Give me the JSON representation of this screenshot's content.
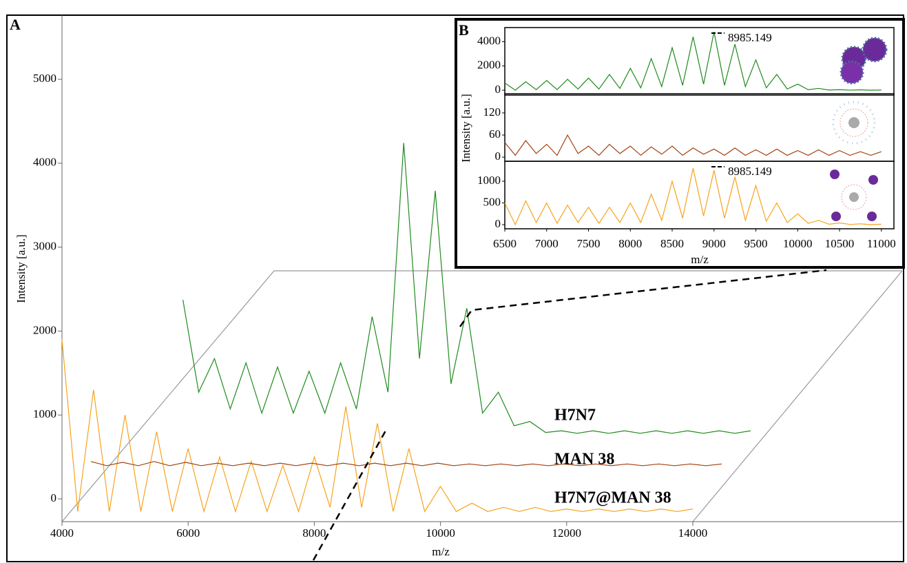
{
  "chart_data": [
    {
      "type": "line",
      "panel_label": "A",
      "xlabel": "m/z",
      "ylabel": "Intensity [a.u.]",
      "xlim": [
        4000,
        14000
      ],
      "ylim": [
        -271,
        5764
      ],
      "xticks": [
        4000,
        6000,
        8000,
        10000,
        12000,
        14000
      ],
      "yticks": [
        0,
        1000,
        2000,
        3000,
        4000,
        5000
      ],
      "x": [
        4000,
        4250,
        4500,
        4750,
        5000,
        5250,
        5500,
        5750,
        6000,
        6250,
        6500,
        6750,
        7000,
        7250,
        7500,
        7750,
        8000,
        8250,
        8500,
        8750,
        9000,
        9250,
        9500,
        9750,
        10000,
        10250,
        10500,
        10750,
        11000,
        11250,
        11500,
        11750,
        12000,
        12250,
        12500,
        12750,
        13000,
        13250,
        13500,
        13750,
        14000
      ],
      "series": [
        {
          "name": "H7N7@MAN 38",
          "color": "#f7a21b",
          "values": [
            1900,
            -150,
            1300,
            -150,
            1000,
            -150,
            800,
            -150,
            600,
            -150,
            500,
            -150,
            450,
            -150,
            400,
            -150,
            500,
            -100,
            1100,
            -100,
            900,
            -150,
            600,
            -150,
            150,
            -150,
            -50,
            -150,
            -100,
            -150,
            -100,
            -150,
            -120,
            -150,
            -120,
            -150,
            -120,
            -150,
            -120,
            -150,
            -120
          ]
        },
        {
          "name": "MAN 38",
          "color": "#a0410d",
          "values": [
            60,
            10,
            50,
            10,
            60,
            10,
            50,
            10,
            40,
            10,
            40,
            10,
            40,
            10,
            40,
            10,
            40,
            10,
            40,
            10,
            40,
            10,
            40,
            10,
            30,
            10,
            30,
            10,
            30,
            10,
            30,
            10,
            30,
            10,
            30,
            10,
            30,
            10,
            30,
            10,
            30
          ]
        },
        {
          "name": "H7N7",
          "color": "#1e8a1e",
          "values": [
            null,
            null,
            null,
            null,
            1600,
            500,
            900,
            300,
            850,
            250,
            800,
            250,
            750,
            250,
            850,
            300,
            1400,
            500,
            3470,
            900,
            2900,
            600,
            1500,
            250,
            500,
            100,
            150,
            20,
            40,
            10,
            40,
            10,
            40,
            10,
            40,
            10,
            40,
            10,
            40,
            10,
            40
          ]
        }
      ]
    },
    {
      "type": "line",
      "panel_label": "B",
      "xlabel": "m/z",
      "ylabel": "Intensity [a.u.]",
      "xlim": [
        6500,
        11150
      ],
      "xticks": [
        6500,
        7000,
        7500,
        8000,
        8500,
        9000,
        9500,
        10000,
        10500,
        11000
      ],
      "x": [
        6500,
        6625,
        6750,
        6875,
        7000,
        7125,
        7250,
        7375,
        7500,
        7625,
        7750,
        7875,
        8000,
        8125,
        8250,
        8375,
        8500,
        8625,
        8750,
        8875,
        9000,
        9125,
        9250,
        9375,
        9500,
        9625,
        9750,
        9875,
        10000,
        10125,
        10250,
        10375,
        10500,
        10625,
        10750,
        10875,
        11000
      ],
      "panels": [
        {
          "ylim": [
            -400,
            5160
          ],
          "yticks": [
            0,
            2000,
            4000
          ],
          "annotation": "8985.149",
          "series": [
            {
              "color": "#1e8a1e",
              "values": [
                600,
                0,
                700,
                50,
                800,
                50,
                900,
                100,
                1000,
                100,
                1300,
                150,
                1800,
                200,
                2600,
                300,
                3500,
                400,
                4400,
                500,
                4800,
                400,
                3800,
                300,
                2500,
                200,
                1300,
                100,
                500,
                50,
                150,
                20,
                50,
                10,
                30,
                0,
                20
              ]
            }
          ]
        },
        {
          "ylim": [
            -11,
            172
          ],
          "yticks": [
            0,
            60,
            120
          ],
          "series": [
            {
              "color": "#a0410d",
              "values": [
                40,
                5,
                45,
                10,
                35,
                5,
                60,
                10,
                30,
                5,
                35,
                10,
                30,
                5,
                28,
                8,
                30,
                5,
                25,
                8,
                22,
                5,
                25,
                5,
                20,
                5,
                22,
                5,
                18,
                5,
                20,
                5,
                18,
                5,
                15,
                5,
                15
              ]
            }
          ]
        },
        {
          "ylim": [
            -95,
            1460
          ],
          "yticks": [
            0,
            500,
            1000
          ],
          "annotation": "8985.149",
          "series": [
            {
              "color": "#f7a21b",
              "values": [
                500,
                0,
                550,
                50,
                500,
                30,
                450,
                50,
                400,
                30,
                400,
                50,
                500,
                50,
                700,
                100,
                1000,
                150,
                1300,
                200,
                1250,
                150,
                1100,
                100,
                900,
                80,
                500,
                50,
                250,
                30,
                100,
                10,
                40,
                5,
                20,
                0,
                10
              ]
            }
          ]
        }
      ]
    }
  ]
}
